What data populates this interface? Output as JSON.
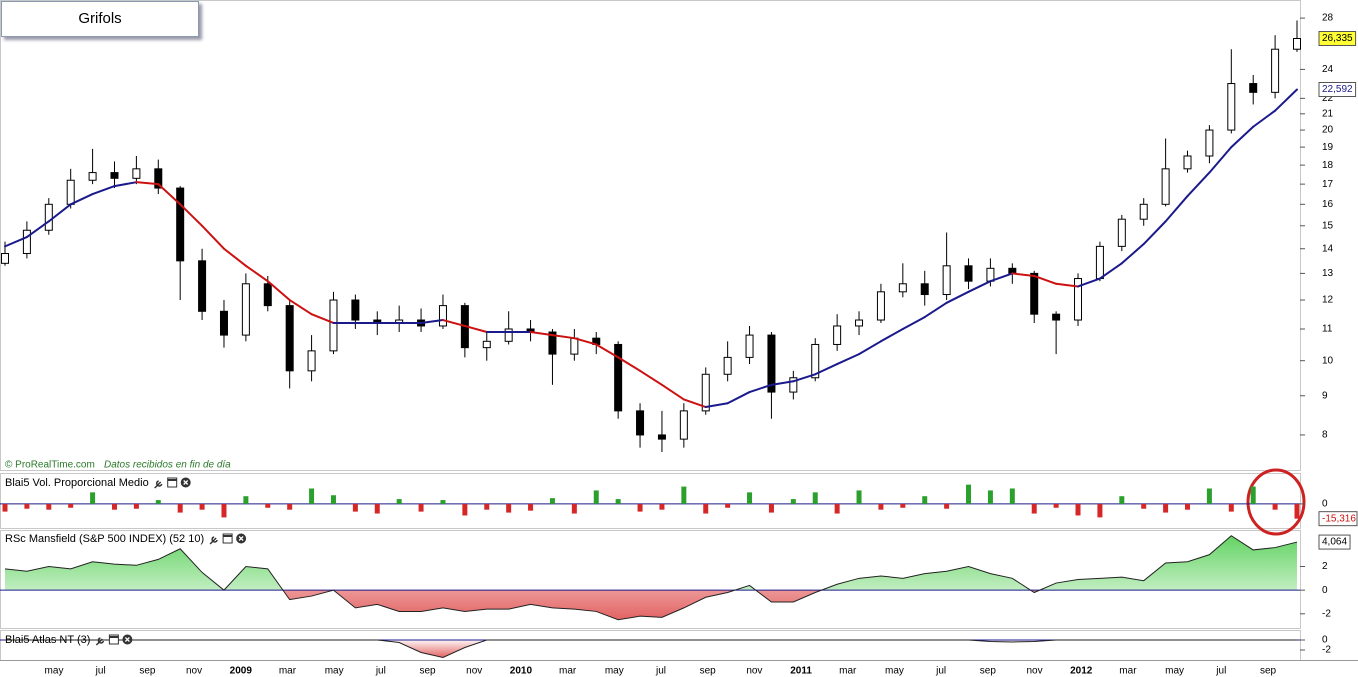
{
  "chart_data": [
    {
      "type": "candlestick",
      "title": "Grifols",
      "source": "© ProRealTime.com",
      "source_note": "Datos recibidos en fin de día",
      "yscale": "log",
      "ylim": [
        7.2,
        29.3
      ],
      "yticks": [
        8,
        9,
        10,
        11,
        12,
        13,
        14,
        15,
        16,
        17,
        18,
        19,
        20,
        21,
        22,
        24,
        28
      ],
      "open": [
        13.4,
        13.8,
        14.8,
        16.0,
        17.2,
        17.6,
        17.3,
        17.8,
        16.8,
        13.5,
        11.6,
        10.8,
        12.6,
        11.8,
        9.7,
        10.3,
        12.0,
        11.3,
        11.2,
        11.3,
        11.1,
        11.8,
        10.4,
        10.6,
        11.0,
        10.9,
        10.2,
        10.7,
        10.5,
        8.6,
        8.0,
        7.9,
        8.6,
        9.6,
        10.1,
        10.8,
        9.1,
        9.5,
        10.5,
        11.1,
        11.3,
        12.3,
        12.6,
        12.2,
        13.3,
        12.7,
        13.2,
        13.0,
        11.5,
        11.3,
        12.8,
        14.1,
        15.3,
        16.0,
        17.8,
        18.5,
        20.0,
        23.0,
        22.4,
        25.5
      ],
      "high": [
        14.3,
        15.2,
        16.3,
        17.8,
        18.9,
        18.2,
        18.5,
        18.3,
        16.9,
        14.0,
        12.0,
        13.0,
        12.9,
        12.0,
        10.8,
        12.3,
        12.2,
        11.6,
        11.8,
        11.7,
        12.2,
        11.9,
        10.9,
        11.6,
        11.3,
        11.0,
        11.0,
        10.9,
        10.6,
        8.8,
        8.6,
        8.8,
        9.8,
        10.6,
        11.1,
        10.9,
        9.7,
        10.7,
        11.5,
        11.6,
        12.6,
        13.4,
        13.1,
        14.7,
        13.6,
        13.6,
        13.4,
        13.1,
        11.6,
        13.0,
        14.3,
        15.5,
        16.3,
        19.5,
        18.8,
        20.3,
        25.5,
        23.6,
        26.6,
        27.8
      ],
      "low": [
        13.3,
        13.6,
        14.6,
        15.8,
        17.0,
        16.8,
        17.0,
        16.5,
        12.0,
        11.3,
        10.4,
        10.6,
        11.6,
        9.2,
        9.4,
        10.2,
        11.0,
        10.8,
        10.9,
        10.9,
        11.0,
        10.1,
        10.0,
        10.5,
        10.6,
        9.3,
        10.0,
        10.2,
        8.4,
        7.7,
        7.6,
        7.7,
        8.5,
        9.4,
        9.9,
        8.4,
        8.9,
        9.4,
        10.3,
        10.8,
        11.2,
        12.1,
        11.8,
        12.0,
        12.4,
        12.5,
        12.6,
        11.2,
        10.2,
        11.1,
        12.7,
        13.9,
        15.0,
        15.9,
        17.6,
        18.1,
        19.8,
        21.6,
        22.0,
        25.3
      ],
      "close": [
        13.8,
        14.8,
        16.0,
        17.2,
        17.6,
        17.3,
        17.8,
        16.8,
        13.5,
        11.6,
        10.8,
        12.6,
        11.8,
        9.7,
        10.3,
        12.0,
        11.3,
        11.2,
        11.3,
        11.1,
        11.8,
        10.4,
        10.6,
        11.0,
        10.9,
        10.2,
        10.7,
        10.5,
        8.6,
        8.0,
        7.9,
        8.6,
        9.6,
        10.1,
        10.8,
        9.1,
        9.5,
        10.5,
        11.1,
        11.3,
        12.3,
        12.6,
        12.2,
        13.3,
        12.7,
        13.2,
        13.0,
        11.5,
        11.3,
        12.8,
        14.1,
        15.3,
        16.0,
        17.8,
        18.5,
        20.0,
        23.0,
        22.4,
        25.5,
        26.335
      ],
      "close_label": "26,335",
      "up_color": "#ffffff",
      "down_color": "#000000",
      "ma": {
        "values": [
          14.1,
          14.5,
          15.2,
          16.0,
          16.5,
          16.9,
          17.1,
          17.0,
          16.0,
          15.0,
          14.0,
          13.3,
          12.7,
          12.0,
          11.5,
          11.2,
          11.2,
          11.2,
          11.2,
          11.2,
          11.3,
          11.1,
          10.9,
          10.9,
          10.9,
          10.8,
          10.7,
          10.5,
          10.1,
          9.7,
          9.3,
          8.9,
          8.7,
          8.8,
          9.1,
          9.3,
          9.4,
          9.6,
          9.9,
          10.2,
          10.6,
          11.0,
          11.4,
          11.9,
          12.3,
          12.7,
          13.0,
          12.9,
          12.6,
          12.5,
          12.8,
          13.4,
          14.2,
          15.2,
          16.4,
          17.6,
          19.0,
          20.2,
          21.2,
          22.592
        ],
        "value_label": "22,592",
        "rising_color": "#1a1a8c",
        "falling_color": "#cc1111"
      }
    },
    {
      "type": "bar",
      "title": "Blai5 Vol. Proporcional Medio",
      "values": [
        -8,
        -5,
        -6,
        -4,
        12,
        -6,
        -5,
        4,
        -9,
        -6,
        -14,
        8,
        -4,
        -6,
        16,
        9,
        -8,
        -10,
        5,
        -8,
        4,
        -12,
        -6,
        -9,
        -7,
        6,
        -10,
        14,
        5,
        -8,
        -6,
        18,
        -10,
        -4,
        12,
        -9,
        5,
        12,
        -10,
        14,
        -6,
        -4,
        8,
        -5,
        20,
        14,
        16,
        -10,
        -4,
        -12,
        -14,
        8,
        -5,
        -9,
        -6,
        16,
        -8,
        18,
        -6,
        -15.316
      ],
      "last_label": "-15,316",
      "ylim": [
        -25,
        30
      ],
      "yticks": [
        0
      ],
      "positive_color": "#2ca02c",
      "negative_color": "#d62728"
    },
    {
      "type": "area",
      "title": "RSc Mansfield (S&P 500 INDEX) (52 10)",
      "values": [
        1.8,
        1.6,
        2.0,
        1.8,
        2.4,
        2.2,
        2.1,
        2.6,
        3.5,
        1.5,
        0.0,
        2.0,
        1.8,
        -0.8,
        -0.5,
        0.0,
        -1.5,
        -1.2,
        -1.8,
        -1.8,
        -1.5,
        -1.8,
        -1.6,
        -1.6,
        -1.2,
        -1.5,
        -1.6,
        -1.8,
        -2.5,
        -2.2,
        -2.3,
        -1.5,
        -0.6,
        -0.2,
        0.4,
        -1.0,
        -1.0,
        -0.2,
        0.5,
        1.0,
        1.2,
        1.0,
        1.4,
        1.6,
        2.0,
        1.4,
        1.0,
        -0.2,
        0.6,
        0.9,
        1.0,
        1.1,
        0.8,
        2.3,
        2.4,
        3.0,
        4.6,
        3.4,
        3.6,
        4.064
      ],
      "last_label": "4,064",
      "ylim": [
        -3.2,
        5
      ],
      "yticks": [
        2,
        0,
        -2
      ],
      "positive_color": "#3cc83c",
      "negative_color": "#dc3c3c",
      "zero_line_color": "#1a1a8c"
    },
    {
      "type": "area",
      "title": "Blai5 Atlas NT (3)",
      "values": [
        0,
        0,
        0,
        0,
        0,
        0,
        0,
        0,
        0,
        0,
        0,
        0,
        0,
        0,
        0,
        0,
        0,
        0,
        -0.5,
        -2.5,
        -3.5,
        -1.5,
        0,
        0,
        0,
        0,
        0,
        0,
        0,
        0,
        0,
        0,
        0,
        0,
        0,
        0,
        0,
        0,
        0,
        0,
        0,
        0,
        0,
        0,
        0,
        -0.3,
        -0.4,
        -0.3,
        0,
        0,
        0,
        0,
        0,
        0,
        0,
        0,
        0,
        0,
        0,
        0
      ],
      "ylim": [
        -4,
        1.6
      ],
      "yticks": [
        0,
        -2
      ],
      "positive_color": "#3cc83c",
      "negative_color": "#dc3c3c",
      "zero_line_color": "#1a1a8c",
      "x_tick_labels": [
        "may",
        "jul",
        "sep",
        "nov",
        "2009",
        "mar",
        "may",
        "jul",
        "sep",
        "nov",
        "2010",
        "mar",
        "may",
        "jul",
        "sep",
        "nov",
        "2011",
        "mar",
        "may",
        "jul",
        "sep",
        "nov",
        "2012",
        "mar",
        "may",
        "jul",
        "sep"
      ]
    }
  ]
}
